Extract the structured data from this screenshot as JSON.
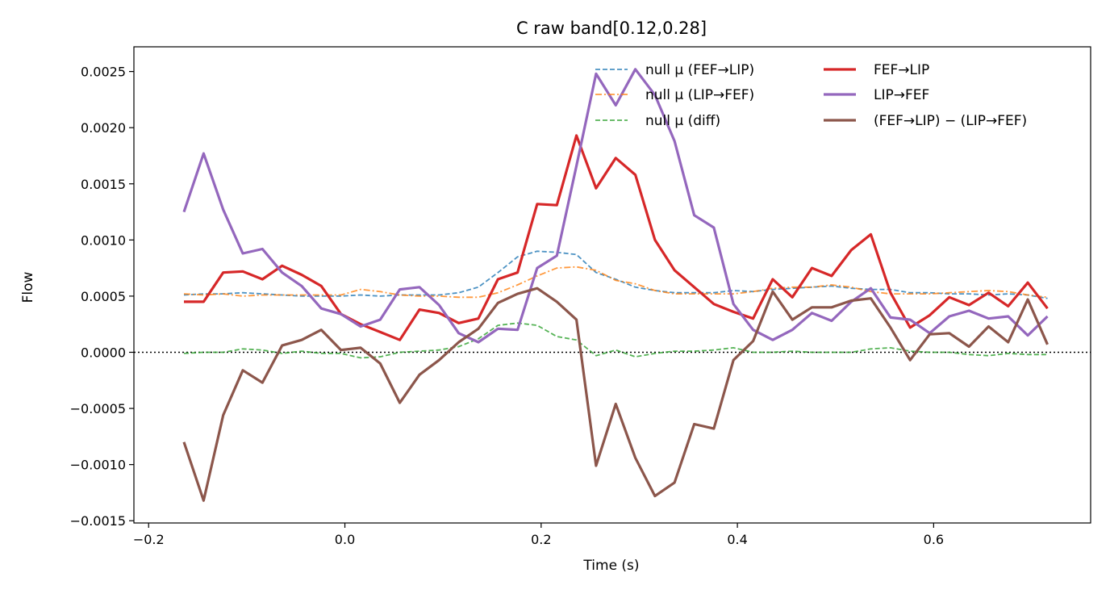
{
  "chart_data": {
    "type": "line",
    "title": "C raw   band[0.12,0.28]",
    "xlabel": "Time (s)",
    "ylabel": "Flow",
    "xlim": [
      -0.215,
      0.76
    ],
    "ylim": [
      -0.00152,
      0.00272
    ],
    "x_ticks": [
      -0.2,
      0.0,
      0.2,
      0.4,
      0.6
    ],
    "x_tick_labels": [
      "−0.2",
      "0.0",
      "0.2",
      "0.4",
      "0.6"
    ],
    "y_ticks": [
      -0.0015,
      -0.001,
      -0.0005,
      0.0,
      0.0005,
      0.001,
      0.0015,
      0.002,
      0.0025
    ],
    "y_tick_labels": [
      "−0.0015",
      "−0.0010",
      "−0.0005",
      "0.0000",
      "0.0005",
      "0.0010",
      "0.0015",
      "0.0020",
      "0.0025"
    ],
    "zero_line": true,
    "grid": false,
    "legend_position": "top-right",
    "x": [
      -0.164,
      -0.144,
      -0.124,
      -0.104,
      -0.084,
      -0.064,
      -0.044,
      -0.024,
      -0.004,
      0.016,
      0.036,
      0.056,
      0.076,
      0.096,
      0.116,
      0.136,
      0.156,
      0.176,
      0.196,
      0.216,
      0.236,
      0.256,
      0.276,
      0.296,
      0.316,
      0.336,
      0.356,
      0.376,
      0.396,
      0.416,
      0.436,
      0.456,
      0.476,
      0.496,
      0.516,
      0.536,
      0.556,
      0.576,
      0.596,
      0.616,
      0.636,
      0.656,
      0.676,
      0.696,
      0.716
    ],
    "series": [
      {
        "name": "null μ (FEF→LIP)",
        "color": "#1f77b4",
        "style": "dashed",
        "values": [
          0.00051,
          0.00052,
          0.00052,
          0.00053,
          0.00052,
          0.00051,
          0.0005,
          0.0005,
          0.0005,
          0.00051,
          0.0005,
          0.00051,
          0.00051,
          0.00051,
          0.00053,
          0.00058,
          0.00071,
          0.00085,
          0.0009,
          0.00089,
          0.00087,
          0.00071,
          0.00065,
          0.00058,
          0.00055,
          0.00053,
          0.00053,
          0.00053,
          0.00055,
          0.00054,
          0.00056,
          0.00057,
          0.00058,
          0.00059,
          0.00057,
          0.00056,
          0.00056,
          0.00053,
          0.00053,
          0.00052,
          0.00052,
          0.00051,
          0.00052,
          0.00051,
          0.00048
        ]
      },
      {
        "name": "null μ (LIP→FEF)",
        "color": "#ff7f0e",
        "style": "dashdot",
        "values": [
          0.00052,
          0.00051,
          0.00052,
          0.0005,
          0.00051,
          0.00051,
          0.00051,
          0.00051,
          0.00051,
          0.00056,
          0.00054,
          0.00051,
          0.0005,
          0.0005,
          0.00049,
          0.00049,
          0.00053,
          0.0006,
          0.00068,
          0.00075,
          0.00076,
          0.00073,
          0.00064,
          0.00061,
          0.00055,
          0.00052,
          0.00052,
          0.00052,
          0.00052,
          0.00054,
          0.00057,
          0.00058,
          0.00058,
          0.0006,
          0.00058,
          0.00054,
          0.00052,
          0.00052,
          0.00052,
          0.00053,
          0.00054,
          0.00055,
          0.00054,
          0.00051,
          0.00049
        ]
      },
      {
        "name": "null μ (diff)",
        "color": "#2ca02c",
        "style": "dashed",
        "values": [
          -1e-05,
          0.0,
          0.0,
          3e-05,
          2e-05,
          -1e-05,
          1e-05,
          -1e-05,
          -1e-05,
          -5e-05,
          -4e-05,
          0.0,
          1e-05,
          2e-05,
          5e-05,
          0.00012,
          0.00024,
          0.00026,
          0.00024,
          0.00014,
          0.00011,
          -3e-05,
          2e-05,
          -4e-05,
          -1e-05,
          1e-05,
          1e-05,
          2e-05,
          4e-05,
          0.0,
          0.0,
          1e-05,
          0.0,
          0.0,
          0.0,
          3e-05,
          4e-05,
          1e-05,
          0.0,
          0.0,
          -2e-05,
          -3e-05,
          -1e-05,
          -2e-05,
          -2e-05
        ]
      },
      {
        "name": "FEF→LIP",
        "color": "#d62728",
        "style": "solid",
        "values": [
          0.00045,
          0.00045,
          0.00071,
          0.00072,
          0.00065,
          0.00077,
          0.00069,
          0.00059,
          0.00034,
          0.00025,
          0.00018,
          0.00011,
          0.00038,
          0.00035,
          0.00026,
          0.0003,
          0.00065,
          0.00071,
          0.00132,
          0.00131,
          0.00193,
          0.00146,
          0.00173,
          0.00158,
          0.001,
          0.00073,
          0.00058,
          0.00043,
          0.00036,
          0.0003,
          0.00065,
          0.00049,
          0.00075,
          0.00068,
          0.00091,
          0.00105,
          0.00053,
          0.00022,
          0.00033,
          0.00049,
          0.00042,
          0.00053,
          0.00041,
          0.00062,
          0.00039
        ]
      },
      {
        "name": "LIP→FEF",
        "color": "#9467bd",
        "style": "solid",
        "values": [
          0.00125,
          0.00177,
          0.00127,
          0.00088,
          0.00092,
          0.00071,
          0.00059,
          0.00039,
          0.00034,
          0.00023,
          0.00029,
          0.00056,
          0.00058,
          0.00042,
          0.00017,
          9e-05,
          0.00021,
          0.0002,
          0.00075,
          0.00086,
          0.00166,
          0.00248,
          0.0022,
          0.00252,
          0.00229,
          0.00188,
          0.00122,
          0.00111,
          0.00043,
          0.0002,
          0.00011,
          0.0002,
          0.00035,
          0.00028,
          0.00045,
          0.00057,
          0.00031,
          0.00029,
          0.00017,
          0.00032,
          0.00037,
          0.0003,
          0.00032,
          0.00015,
          0.00032
        ]
      },
      {
        "name": "(FEF→LIP) − (LIP→FEF)",
        "color": "#8c564b",
        "style": "solid",
        "values": [
          -0.0008,
          -0.00132,
          -0.00056,
          -0.00016,
          -0.00027,
          6e-05,
          0.00011,
          0.0002,
          2e-05,
          4e-05,
          -0.0001,
          -0.00045,
          -0.0002,
          -7e-05,
          9e-05,
          0.00021,
          0.00044,
          0.00052,
          0.00057,
          0.00045,
          0.00029,
          -0.00101,
          -0.00046,
          -0.00094,
          -0.00128,
          -0.00116,
          -0.00064,
          -0.00068,
          -7e-05,
          0.0001,
          0.00054,
          0.00029,
          0.0004,
          0.0004,
          0.00046,
          0.00048,
          0.00022,
          -7e-05,
          0.00016,
          0.00017,
          5e-05,
          0.00023,
          9e-05,
          0.00047,
          7e-05
        ]
      }
    ]
  }
}
